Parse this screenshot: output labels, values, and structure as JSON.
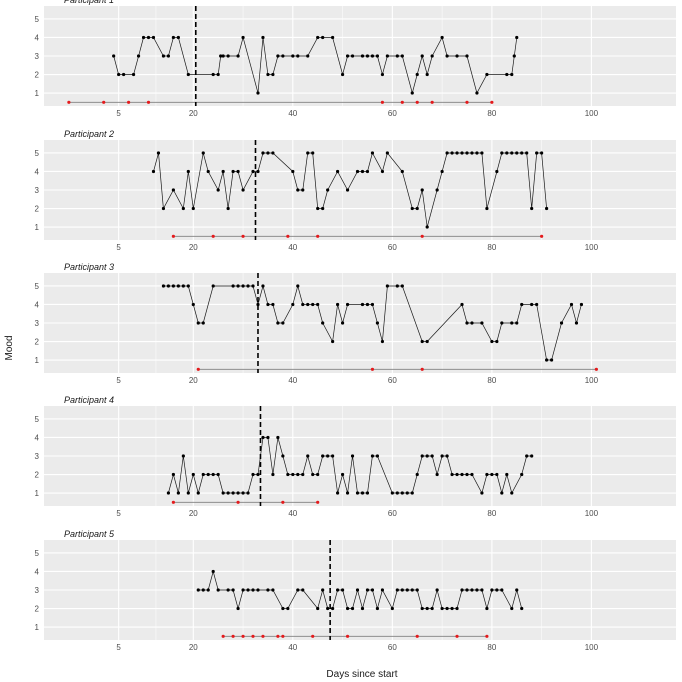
{
  "chart_data": {
    "type": "line",
    "xlabel": "Days since start",
    "ylabel": "Mood",
    "xlim": [
      -10,
      117
    ],
    "ylim": [
      0.3,
      5.7
    ],
    "x_ticks": [
      5,
      20,
      40,
      60,
      80,
      100
    ],
    "y_ticks": [
      1,
      2,
      3,
      4,
      5
    ],
    "grid": true,
    "colors": {
      "panel_bg": "#ebebeb",
      "grid": "#ffffff",
      "line": "#1a1a1a",
      "point": "#000000",
      "event": "#e41a1c",
      "event_line": "#7f7f7f"
    },
    "panels": [
      {
        "title": "Participant 1",
        "vline": 20.5,
        "mood": [
          [
            4,
            3
          ],
          [
            5,
            2
          ],
          [
            6,
            2
          ],
          [
            8,
            2
          ],
          [
            9,
            3
          ],
          [
            10,
            4
          ],
          [
            11,
            4
          ],
          [
            12,
            4
          ],
          [
            14,
            3
          ],
          [
            15,
            3
          ],
          [
            16,
            4
          ],
          [
            17,
            4
          ],
          [
            19,
            2
          ],
          [
            24,
            2
          ],
          [
            25,
            2
          ],
          [
            25.5,
            3
          ],
          [
            26,
            3
          ],
          [
            27,
            3
          ],
          [
            29,
            3
          ],
          [
            30,
            4
          ],
          [
            33,
            1
          ],
          [
            34,
            4
          ],
          [
            35,
            2
          ],
          [
            36,
            2
          ],
          [
            37,
            3
          ],
          [
            38,
            3
          ],
          [
            40,
            3
          ],
          [
            41,
            3
          ],
          [
            43,
            3
          ],
          [
            45,
            4
          ],
          [
            46,
            4
          ],
          [
            48,
            4
          ],
          [
            50,
            2
          ],
          [
            51,
            3
          ],
          [
            52,
            3
          ],
          [
            54,
            3
          ],
          [
            55,
            3
          ],
          [
            56,
            3
          ],
          [
            57,
            3
          ],
          [
            58,
            2
          ],
          [
            59,
            3
          ],
          [
            61,
            3
          ],
          [
            62,
            3
          ],
          [
            64,
            1
          ],
          [
            65,
            2
          ],
          [
            66,
            3
          ],
          [
            67,
            2
          ],
          [
            68,
            3
          ],
          [
            70,
            4
          ],
          [
            71,
            3
          ],
          [
            73,
            3
          ],
          [
            75,
            3
          ],
          [
            77,
            1
          ],
          [
            79,
            2
          ],
          [
            83,
            2
          ],
          [
            84,
            2
          ],
          [
            84.5,
            3
          ],
          [
            85,
            4
          ]
        ],
        "events": [
          -5,
          2,
          7,
          11,
          58,
          62,
          65,
          68,
          75,
          80
        ]
      },
      {
        "title": "Participant 2",
        "vline": 32.5,
        "mood": [
          [
            12,
            4
          ],
          [
            13,
            5
          ],
          [
            14,
            2
          ],
          [
            16,
            3
          ],
          [
            18,
            2
          ],
          [
            19,
            4
          ],
          [
            20,
            2
          ],
          [
            22,
            5
          ],
          [
            23,
            4
          ],
          [
            25,
            3
          ],
          [
            26,
            4
          ],
          [
            27,
            2
          ],
          [
            28,
            4
          ],
          [
            29,
            4
          ],
          [
            30,
            3
          ],
          [
            32,
            4
          ],
          [
            33,
            4
          ],
          [
            34,
            5
          ],
          [
            35,
            5
          ],
          [
            36,
            5
          ],
          [
            40,
            4
          ],
          [
            41,
            3
          ],
          [
            42,
            3
          ],
          [
            43,
            5
          ],
          [
            44,
            5
          ],
          [
            45,
            2
          ],
          [
            46,
            2
          ],
          [
            47,
            3
          ],
          [
            49,
            4
          ],
          [
            51,
            3
          ],
          [
            53,
            4
          ],
          [
            54,
            4
          ],
          [
            55,
            4
          ],
          [
            56,
            5
          ],
          [
            58,
            4
          ],
          [
            59,
            5
          ],
          [
            62,
            4
          ],
          [
            64,
            2
          ],
          [
            65,
            2
          ],
          [
            66,
            3
          ],
          [
            67,
            1
          ],
          [
            69,
            3
          ],
          [
            70,
            4
          ],
          [
            71,
            5
          ],
          [
            72,
            5
          ],
          [
            73,
            5
          ],
          [
            74,
            5
          ],
          [
            75,
            5
          ],
          [
            76,
            5
          ],
          [
            77,
            5
          ],
          [
            78,
            5
          ],
          [
            79,
            2
          ],
          [
            81,
            4
          ],
          [
            82,
            5
          ],
          [
            83,
            5
          ],
          [
            84,
            5
          ],
          [
            85,
            5
          ],
          [
            86,
            5
          ],
          [
            87,
            5
          ],
          [
            88,
            2
          ],
          [
            89,
            5
          ],
          [
            90,
            5
          ],
          [
            91,
            2
          ]
        ],
        "events": [
          16,
          24,
          30,
          39,
          45,
          66,
          90
        ]
      },
      {
        "title": "Participant 3",
        "vline": 33,
        "mood": [
          [
            14,
            5
          ],
          [
            15,
            5
          ],
          [
            16,
            5
          ],
          [
            17,
            5
          ],
          [
            18,
            5
          ],
          [
            19,
            5
          ],
          [
            20,
            4
          ],
          [
            21,
            3
          ],
          [
            22,
            3
          ],
          [
            24,
            5
          ],
          [
            28,
            5
          ],
          [
            29,
            5
          ],
          [
            30,
            5
          ],
          [
            31,
            5
          ],
          [
            32,
            5
          ],
          [
            33,
            4
          ],
          [
            34,
            5
          ],
          [
            35,
            4
          ],
          [
            36,
            4
          ],
          [
            37,
            3
          ],
          [
            38,
            3
          ],
          [
            40,
            4
          ],
          [
            41,
            5
          ],
          [
            42,
            4
          ],
          [
            43,
            4
          ],
          [
            44,
            4
          ],
          [
            45,
            4
          ],
          [
            46,
            3
          ],
          [
            48,
            2
          ],
          [
            49,
            4
          ],
          [
            50,
            3
          ],
          [
            51,
            4
          ],
          [
            54,
            4
          ],
          [
            55,
            4
          ],
          [
            56,
            4
          ],
          [
            57,
            3
          ],
          [
            58,
            2
          ],
          [
            59,
            5
          ],
          [
            61,
            5
          ],
          [
            62,
            5
          ],
          [
            66,
            2
          ],
          [
            67,
            2
          ],
          [
            74,
            4
          ],
          [
            75,
            3
          ],
          [
            76,
            3
          ],
          [
            78,
            3
          ],
          [
            80,
            2
          ],
          [
            81,
            2
          ],
          [
            82,
            3
          ],
          [
            84,
            3
          ],
          [
            85,
            3
          ],
          [
            86,
            4
          ],
          [
            88,
            4
          ],
          [
            89,
            4
          ],
          [
            91,
            1
          ],
          [
            92,
            1
          ],
          [
            94,
            3
          ],
          [
            96,
            4
          ],
          [
            97,
            3
          ],
          [
            98,
            4
          ]
        ],
        "events": [
          21,
          56,
          66,
          101
        ]
      },
      {
        "title": "Participant 4",
        "vline": 33.5,
        "mood": [
          [
            15,
            1
          ],
          [
            16,
            2
          ],
          [
            17,
            1
          ],
          [
            18,
            3
          ],
          [
            19,
            1
          ],
          [
            20,
            2
          ],
          [
            21,
            1
          ],
          [
            22,
            2
          ],
          [
            23,
            2
          ],
          [
            24,
            2
          ],
          [
            25,
            2
          ],
          [
            26,
            1
          ],
          [
            27,
            1
          ],
          [
            28,
            1
          ],
          [
            29,
            1
          ],
          [
            30,
            1
          ],
          [
            31,
            1
          ],
          [
            32,
            2
          ],
          [
            33,
            2
          ],
          [
            34,
            4
          ],
          [
            35,
            4
          ],
          [
            36,
            2
          ],
          [
            37,
            4
          ],
          [
            38,
            3
          ],
          [
            39,
            2
          ],
          [
            40,
            2
          ],
          [
            41,
            2
          ],
          [
            42,
            2
          ],
          [
            43,
            3
          ],
          [
            44,
            2
          ],
          [
            45,
            2
          ],
          [
            46,
            3
          ],
          [
            47,
            3
          ],
          [
            48,
            3
          ],
          [
            49,
            1
          ],
          [
            50,
            2
          ],
          [
            51,
            1
          ],
          [
            52,
            3
          ],
          [
            53,
            1
          ],
          [
            54,
            1
          ],
          [
            55,
            1
          ],
          [
            56,
            3
          ],
          [
            57,
            3
          ],
          [
            60,
            1
          ],
          [
            61,
            1
          ],
          [
            62,
            1
          ],
          [
            63,
            1
          ],
          [
            64,
            1
          ],
          [
            65,
            2
          ],
          [
            66,
            3
          ],
          [
            67,
            3
          ],
          [
            68,
            3
          ],
          [
            69,
            2
          ],
          [
            70,
            3
          ],
          [
            71,
            3
          ],
          [
            72,
            2
          ],
          [
            73,
            2
          ],
          [
            74,
            2
          ],
          [
            75,
            2
          ],
          [
            76,
            2
          ],
          [
            78,
            1
          ],
          [
            79,
            2
          ],
          [
            80,
            2
          ],
          [
            81,
            2
          ],
          [
            82,
            1
          ],
          [
            83,
            2
          ],
          [
            84,
            1
          ],
          [
            86,
            2
          ],
          [
            87,
            3
          ],
          [
            88,
            3
          ]
        ],
        "events": [
          16,
          29,
          38,
          45
        ]
      },
      {
        "title": "Participant 5",
        "vline": 47.5,
        "mood": [
          [
            21,
            3
          ],
          [
            22,
            3
          ],
          [
            23,
            3
          ],
          [
            24,
            4
          ],
          [
            25,
            3
          ],
          [
            27,
            3
          ],
          [
            28,
            3
          ],
          [
            29,
            2
          ],
          [
            30,
            3
          ],
          [
            31,
            3
          ],
          [
            32,
            3
          ],
          [
            33,
            3
          ],
          [
            35,
            3
          ],
          [
            36,
            3
          ],
          [
            38,
            2
          ],
          [
            39,
            2
          ],
          [
            41,
            3
          ],
          [
            42,
            3
          ],
          [
            45,
            2
          ],
          [
            46,
            3
          ],
          [
            47,
            2
          ],
          [
            48,
            2
          ],
          [
            49,
            3
          ],
          [
            50,
            3
          ],
          [
            51,
            2
          ],
          [
            52,
            2
          ],
          [
            53,
            3
          ],
          [
            54,
            2
          ],
          [
            55,
            3
          ],
          [
            56,
            3
          ],
          [
            57,
            2
          ],
          [
            58,
            3
          ],
          [
            60,
            2
          ],
          [
            61,
            3
          ],
          [
            62,
            3
          ],
          [
            63,
            3
          ],
          [
            64,
            3
          ],
          [
            65,
            3
          ],
          [
            66,
            2
          ],
          [
            67,
            2
          ],
          [
            68,
            2
          ],
          [
            69,
            3
          ],
          [
            70,
            2
          ],
          [
            71,
            2
          ],
          [
            72,
            2
          ],
          [
            73,
            2
          ],
          [
            74,
            3
          ],
          [
            75,
            3
          ],
          [
            76,
            3
          ],
          [
            77,
            3
          ],
          [
            78,
            3
          ],
          [
            79,
            2
          ],
          [
            80,
            3
          ],
          [
            81,
            3
          ],
          [
            82,
            3
          ],
          [
            84,
            2
          ],
          [
            85,
            3
          ],
          [
            86,
            2
          ]
        ],
        "events": [
          26,
          28,
          30,
          32,
          34,
          37,
          38,
          44,
          51,
          65,
          73,
          79
        ]
      }
    ]
  }
}
